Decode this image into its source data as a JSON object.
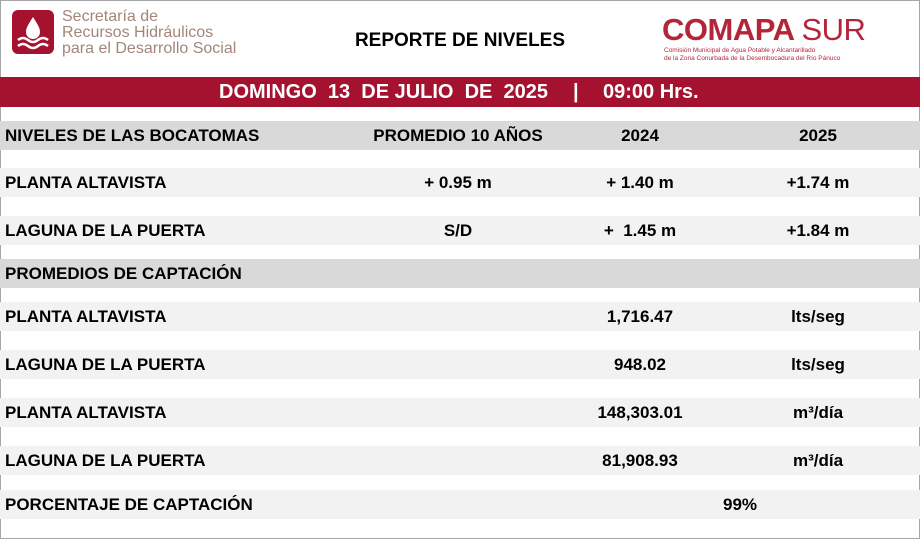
{
  "header": {
    "agency": [
      "Secretaría de",
      "Recursos Hidráulicos",
      "para el Desarrollo Social"
    ],
    "title": "REPORTE DE NIVELES",
    "brand": {
      "name": "COMAPA",
      "suffix": "SUR",
      "lines": [
        "Comisión Municipal de Agua Potable y Alcantarillado",
        "de la Zona Conurbada de la Desembocadura del Río Pánuco"
      ]
    }
  },
  "band": {
    "date": "DOMINGO  13  DE JULIO  DE  2025",
    "separator": "|",
    "time": "09:00 Hrs."
  },
  "table": {
    "levels_header": [
      "NIVELES DE LAS BOCATOMAS",
      "PROMEDIO 10 AÑOS",
      "2024",
      "2025"
    ],
    "levels": [
      [
        "PLANTA ALTAVISTA",
        "+ 0.95 m",
        "+ 1.40 m",
        "+1.74 m"
      ],
      [
        "LAGUNA DE LA PUERTA",
        "S/D",
        "+  1.45 m",
        "+1.84 m"
      ]
    ],
    "capture_header": "PROMEDIOS DE CAPTACIÓN",
    "capture": [
      [
        "PLANTA ALTAVISTA",
        "1,716.47",
        "lts/seg"
      ],
      [
        "LAGUNA DE LA PUERTA",
        "948.02",
        "lts/seg"
      ],
      [
        "PLANTA ALTAVISTA",
        "148,303.01",
        "m³/día"
      ],
      [
        "LAGUNA DE LA PUERTA",
        "81,908.93",
        "m³/día"
      ]
    ],
    "percentage": [
      "PORCENTAJE DE CAPTACIÓN",
      "99%"
    ]
  }
}
